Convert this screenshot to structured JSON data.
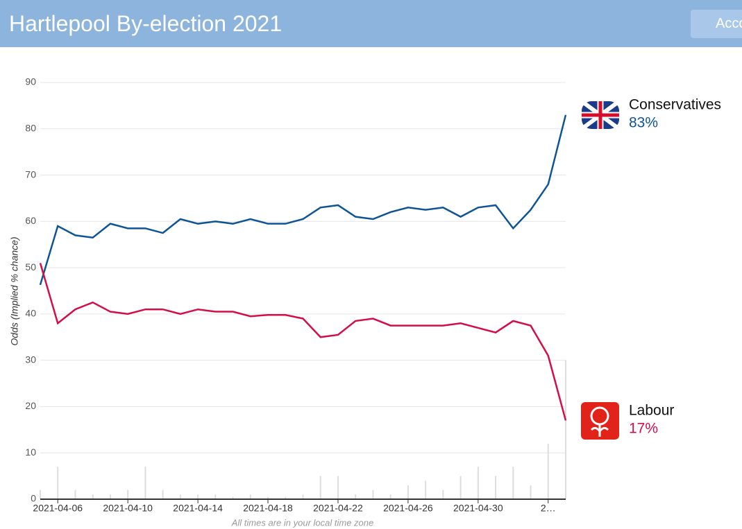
{
  "header": {
    "title": "Hartlepool By-election 2021",
    "button": "Account"
  },
  "chart_data": {
    "type": "line",
    "ylabel": "Odds (Implied % chance)",
    "note": "All times are in your local time zone",
    "x": [
      "2021-04-05",
      "2021-04-06",
      "2021-04-07",
      "2021-04-08",
      "2021-04-09",
      "2021-04-10",
      "2021-04-11",
      "2021-04-12",
      "2021-04-13",
      "2021-04-14",
      "2021-04-15",
      "2021-04-16",
      "2021-04-17",
      "2021-04-18",
      "2021-04-19",
      "2021-04-20",
      "2021-04-21",
      "2021-04-22",
      "2021-04-23",
      "2021-04-24",
      "2021-04-25",
      "2021-04-26",
      "2021-04-27",
      "2021-04-28",
      "2021-04-29",
      "2021-04-30",
      "2021-05-01",
      "2021-05-02",
      "2021-05-03",
      "2021-05-04",
      "2021-05-05"
    ],
    "series": [
      {
        "name": "Conservatives",
        "color": "#0d5496",
        "last_label": "83%",
        "values": [
          46.3,
          59,
          57,
          56.5,
          59.5,
          58.5,
          58.5,
          57.5,
          60.5,
          59.5,
          60,
          59.5,
          60.5,
          59.5,
          59.5,
          60.5,
          63,
          63.5,
          61,
          60.5,
          62,
          63,
          62.5,
          63,
          61,
          63,
          63.5,
          58.5,
          62.5,
          68,
          83
        ]
      },
      {
        "name": "Labour",
        "color": "#d50d47",
        "last_label": "17%",
        "values": [
          51,
          38,
          41,
          42.5,
          40.5,
          40,
          41,
          41,
          40,
          41,
          40.5,
          40.5,
          39.5,
          39.8,
          39.8,
          39,
          35,
          35.5,
          38.5,
          39,
          37.5,
          37.5,
          37.5,
          37.5,
          38,
          37,
          36,
          38.5,
          37.5,
          31,
          17
        ]
      }
    ],
    "volume": [
      2,
      7,
      2,
      1,
      1,
      2,
      7,
      2,
      1,
      1,
      1,
      0.5,
      1,
      0.5,
      0.5,
      1,
      5,
      5,
      1,
      2,
      1,
      3,
      4,
      2,
      5,
      7,
      5,
      7,
      3,
      12,
      30
    ],
    "xlim": [
      "2021-04-05",
      "2021-05-05"
    ],
    "xticks": [
      "2021-04-06",
      "2021-04-10",
      "2021-04-14",
      "2021-04-18",
      "2021-04-22",
      "2021-04-26",
      "2021-04-30",
      {
        "value": "2021-05-04",
        "label": "2…"
      }
    ],
    "ylim": [
      0,
      90
    ],
    "yticks": [
      0,
      10,
      20,
      30,
      40,
      50,
      60,
      70,
      80,
      90
    ],
    "grid": true
  }
}
